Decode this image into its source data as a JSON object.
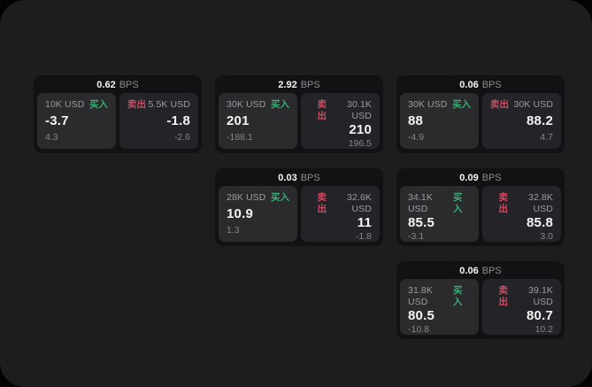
{
  "labels": {
    "bps_unit": "BPS",
    "buy": "买入",
    "sell": "卖出"
  },
  "colors": {
    "buy_green": "#3aac72",
    "sell_red": "#cf4a61",
    "panel_bg": "#1d1d1f",
    "card_bg": "#121214",
    "buy_panel_bg": "#2b2b2e",
    "sell_panel_bg": "#242428"
  },
  "cards": [
    {
      "bps": "0.62",
      "buy": {
        "amount": "10K USD",
        "value": "-3.7",
        "delta": "4.3"
      },
      "sell": {
        "amount": "5.5K USD",
        "value": "-1.8",
        "delta": "-2.6"
      }
    },
    {
      "bps": "2.92",
      "buy": {
        "amount": "30K USD",
        "value": "201",
        "delta": "-188.1"
      },
      "sell": {
        "amount": "30.1K USD",
        "value": "210",
        "delta": "196.5"
      }
    },
    {
      "bps": "0.06",
      "buy": {
        "amount": "30K USD",
        "value": "88",
        "delta": "-4.9"
      },
      "sell": {
        "amount": "30K USD",
        "value": "88.2",
        "delta": "4.7"
      }
    },
    {
      "bps": "0.03",
      "buy": {
        "amount": "28K USD",
        "value": "10.9",
        "delta": "1.3"
      },
      "sell": {
        "amount": "32.6K USD",
        "value": "11",
        "delta": "-1.8"
      }
    },
    {
      "bps": "0.09",
      "buy": {
        "amount": "34.1K USD",
        "value": "85.5",
        "delta": "-3.1"
      },
      "sell": {
        "amount": "32.8K USD",
        "value": "85.8",
        "delta": "3.0"
      }
    },
    {
      "bps": "0.06",
      "buy": {
        "amount": "31.8K USD",
        "value": "80.5",
        "delta": "-10.8"
      },
      "sell": {
        "amount": "39.1K USD",
        "value": "80.7",
        "delta": "10.2"
      }
    }
  ]
}
